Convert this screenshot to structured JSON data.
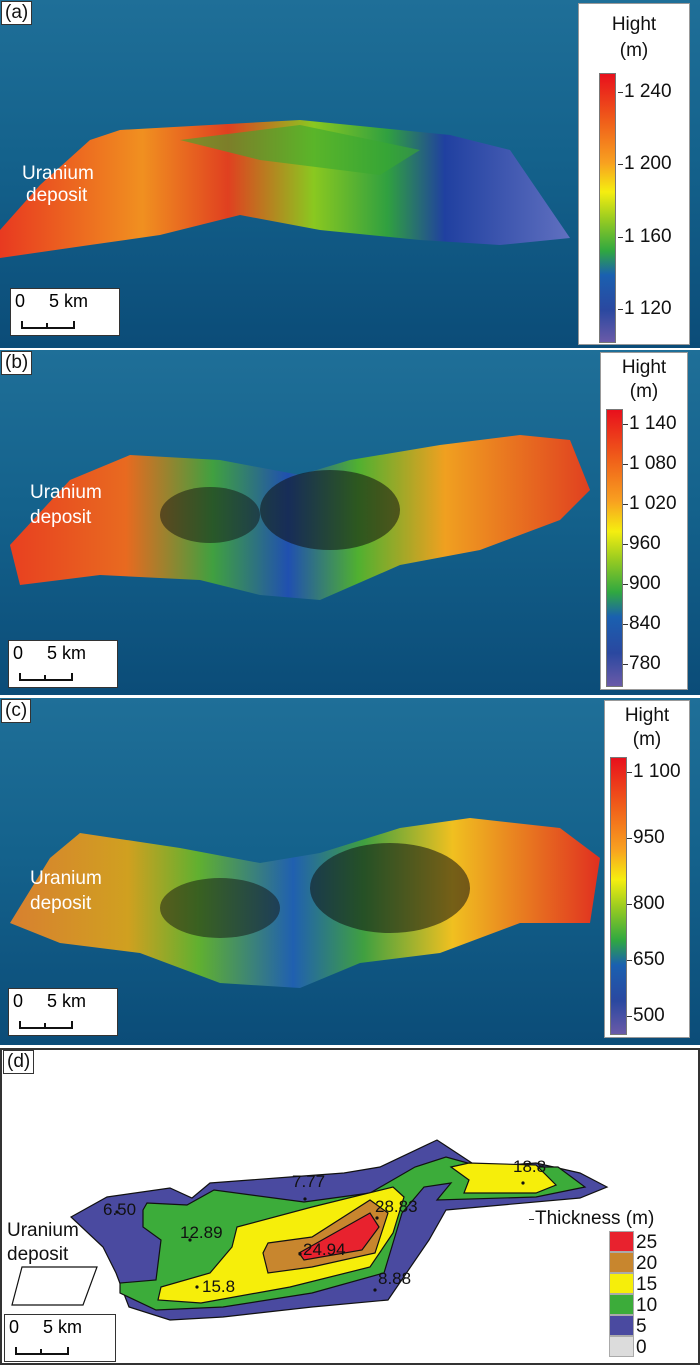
{
  "panels": {
    "a": {
      "label": "(a)",
      "legend_title": "Hight",
      "legend_unit": "(m)",
      "ticks": [
        "1 240",
        "1 200",
        "1 160",
        "1 120"
      ],
      "uranium": "Uranium",
      "deposit": "deposit",
      "scale_zero": "0",
      "scale_len": "5 km"
    },
    "b": {
      "label": "(b)",
      "legend_title": "Hight",
      "legend_unit": "(m)",
      "ticks": [
        "1 140",
        "1 080",
        "1 020",
        "960",
        "900",
        "840",
        "780"
      ],
      "uranium": "Uranium",
      "deposit": "deposit",
      "scale_zero": "0",
      "scale_len": "5 km"
    },
    "c": {
      "label": "(c)",
      "legend_title": "Hight",
      "legend_unit": "(m)",
      "ticks": [
        "1 100",
        "950",
        "800",
        "650",
        "500"
      ],
      "uranium": "Uranium",
      "deposit": "deposit",
      "scale_zero": "0",
      "scale_len": "5 km"
    },
    "d": {
      "label": "(d)",
      "uranium": "Uranium",
      "deposit": "deposit",
      "scale_zero": "0",
      "scale_len": "5 km",
      "legend_title": "Thickness (m)",
      "legend": [
        {
          "value": "25",
          "color": "#e8222e"
        },
        {
          "value": "20",
          "color": "#c8862e"
        },
        {
          "value": "15",
          "color": "#f6ee0a"
        },
        {
          "value": "10",
          "color": "#3cac3a"
        },
        {
          "value": "5",
          "color": "#4a4aa0"
        },
        {
          "value": "0",
          "color": "#dcdcdc"
        }
      ],
      "points": [
        "7.77",
        "6.50",
        "12.89",
        "28.83",
        "24.94",
        "15.8",
        "8.88",
        "18.8"
      ]
    }
  }
}
